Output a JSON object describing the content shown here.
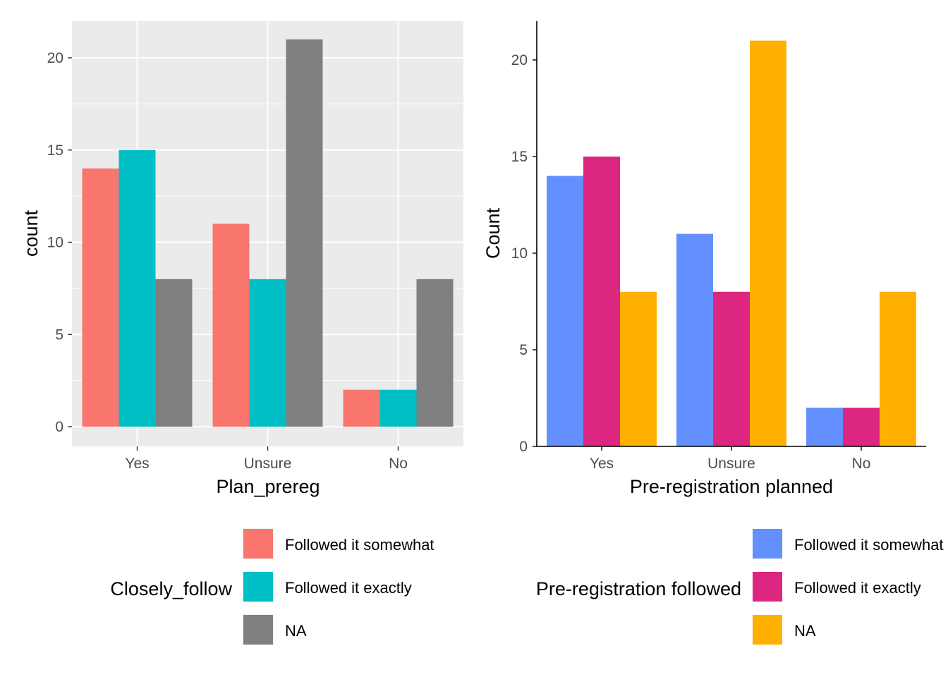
{
  "chart_data": [
    {
      "type": "bar",
      "theme": "ggplot-grey",
      "categories": [
        "Yes",
        "Unsure",
        "No"
      ],
      "series": [
        {
          "name": "Followed it somewhat",
          "color": "#F8766D",
          "values": [
            14,
            11,
            2
          ]
        },
        {
          "name": "Followed it exactly",
          "color": "#00BFC4",
          "values": [
            15,
            8,
            2
          ]
        },
        {
          "name": "NA",
          "color": "#7F7F7F",
          "values": [
            8,
            21,
            8
          ]
        }
      ],
      "xlabel": "Plan_prereg",
      "ylabel": "count",
      "ylim": [
        0,
        22
      ],
      "yticks": [
        0,
        5,
        10,
        15,
        20
      ],
      "legend_title": "Closely_follow",
      "legend_position": "bottom",
      "grid": true
    },
    {
      "type": "bar",
      "theme": "classic",
      "categories": [
        "Yes",
        "Unsure",
        "No"
      ],
      "series": [
        {
          "name": "Followed it somewhat",
          "color": "#648FFF",
          "values": [
            14,
            11,
            2
          ]
        },
        {
          "name": "Followed it exactly",
          "color": "#DC267F",
          "values": [
            15,
            8,
            2
          ]
        },
        {
          "name": "NA",
          "color": "#FFB000",
          "values": [
            8,
            21,
            8
          ]
        }
      ],
      "xlabel": "Pre-registration planned",
      "ylabel": "Count",
      "ylim": [
        0,
        22
      ],
      "yticks": [
        0,
        5,
        10,
        15,
        20
      ],
      "legend_title": "Pre-registration followed",
      "legend_position": "bottom",
      "grid": false
    }
  ]
}
